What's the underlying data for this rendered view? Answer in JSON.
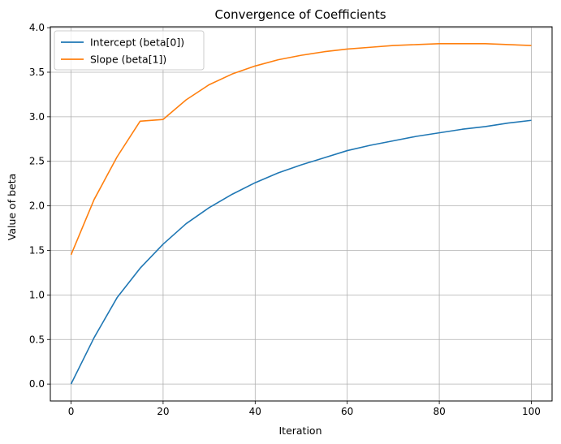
{
  "chart_data": {
    "type": "line",
    "title": "Convergence of Coefficients",
    "xlabel": "Iteration",
    "ylabel": "Value of beta",
    "xlim": [
      -4.5,
      104.5
    ],
    "ylim": [
      -0.19,
      4.01
    ],
    "xticks": [
      0,
      20,
      40,
      60,
      80,
      100
    ],
    "yticks": [
      0.0,
      0.5,
      1.0,
      1.5,
      2.0,
      2.5,
      3.0,
      3.5,
      4.0
    ],
    "xtick_labels": [
      "0",
      "20",
      "40",
      "60",
      "80",
      "100"
    ],
    "ytick_labels": [
      "0.0",
      "0.5",
      "1.0",
      "1.5",
      "2.0",
      "2.5",
      "3.0",
      "3.5",
      "4.0"
    ],
    "grid": true,
    "legend_position": "upper-left",
    "x": [
      0,
      5,
      10,
      15,
      20,
      25,
      30,
      35,
      40,
      45,
      50,
      55,
      60,
      65,
      70,
      75,
      80,
      85,
      90,
      95,
      100
    ],
    "series": [
      {
        "name": "Intercept (beta[0])",
        "color": "#1f77b4",
        "values": [
          0.0,
          0.52,
          0.97,
          1.3,
          1.57,
          1.8,
          1.98,
          2.13,
          2.26,
          2.37,
          2.46,
          2.54,
          2.62,
          2.68,
          2.73,
          2.78,
          2.82,
          2.86,
          2.89,
          2.93,
          2.96
        ]
      },
      {
        "name": "Slope (beta[1])",
        "color": "#ff7f0e",
        "values": [
          1.45,
          2.07,
          2.55,
          2.95,
          2.97,
          3.19,
          3.36,
          3.48,
          3.57,
          3.64,
          3.69,
          3.73,
          3.76,
          3.78,
          3.8,
          3.81,
          3.82,
          3.82,
          3.82,
          3.81,
          3.8
        ]
      }
    ]
  }
}
